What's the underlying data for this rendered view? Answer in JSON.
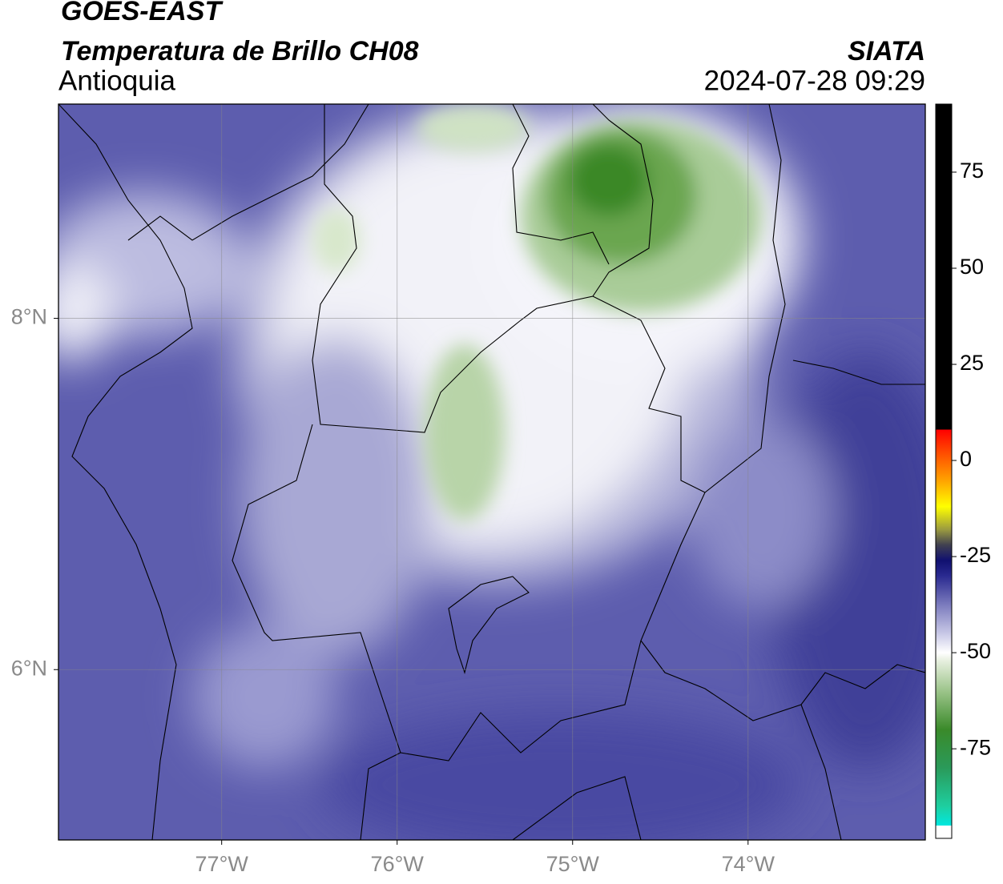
{
  "header": {
    "satellite": "GOES-EAST",
    "title": "Temperatura de Brillo CH08",
    "region": "Antioquia",
    "source": "SIATA",
    "datetime": "2024-07-28 09:29"
  },
  "map": {
    "lon_range": [
      -77.93,
      -72.99
    ],
    "lat_range": [
      5.03,
      9.22
    ],
    "lon_ticks": [
      {
        "value": -77,
        "label": "77°W"
      },
      {
        "value": -76,
        "label": "76°W"
      },
      {
        "value": -75,
        "label": "75°W"
      },
      {
        "value": -74,
        "label": "74°W"
      }
    ],
    "lat_ticks": [
      {
        "value": 8,
        "label": "8°N"
      },
      {
        "value": 6,
        "label": "6°N"
      }
    ]
  },
  "colorbar": {
    "range": [
      -98.3,
      92.7
    ],
    "ticks": [
      75,
      50,
      25,
      0,
      -25,
      -50,
      -75
    ],
    "stops": [
      {
        "value": -98.3,
        "color": "#ffffff"
      },
      {
        "value": -95,
        "color": "#ffffff"
      },
      {
        "value": -95,
        "color": "#00e8e0"
      },
      {
        "value": -90,
        "color": "#1ecfa0"
      },
      {
        "value": -80,
        "color": "#2a9a5a"
      },
      {
        "value": -70,
        "color": "#3a8a2a"
      },
      {
        "value": -60,
        "color": "#9cc48a"
      },
      {
        "value": -52,
        "color": "#e8f0e0"
      },
      {
        "value": -50,
        "color": "#ffffff"
      },
      {
        "value": -45,
        "color": "#c8c8e6"
      },
      {
        "value": -38,
        "color": "#8080c0"
      },
      {
        "value": -30,
        "color": "#2a2a90"
      },
      {
        "value": -26,
        "color": "#101070"
      },
      {
        "value": -22,
        "color": "#404050"
      },
      {
        "value": -18,
        "color": "#9a9a40"
      },
      {
        "value": -12,
        "color": "#ffff00"
      },
      {
        "value": -5,
        "color": "#ffa000"
      },
      {
        "value": 3,
        "color": "#ff4000"
      },
      {
        "value": 8,
        "color": "#ff0000"
      },
      {
        "value": 8,
        "color": "#000000"
      },
      {
        "value": 92.7,
        "color": "#000000"
      }
    ]
  }
}
